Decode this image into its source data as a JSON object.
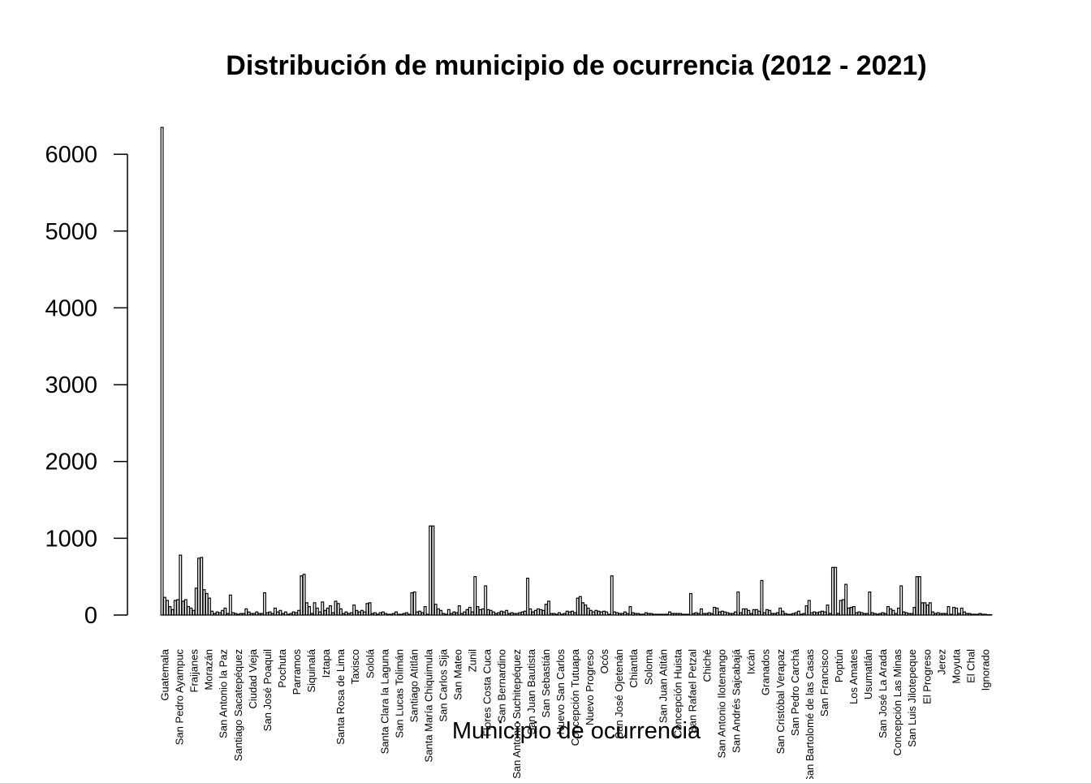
{
  "chart_data": {
    "type": "bar",
    "title": "Distribución de municipio de ocurrencia (2012 - 2021)",
    "xlabel": "Municipio de ocurrencia",
    "ylabel": "",
    "ylim": [
      0,
      6350
    ],
    "yticks": [
      0,
      1000,
      2000,
      3000,
      4000,
      5000,
      6000
    ],
    "grid": false,
    "legend": "none",
    "bar_fill": "#ffffff",
    "bar_stroke": "#000000",
    "tick_labels": [
      "Guatemala",
      "San Pedro Ayampuc",
      "Fraijanes",
      "Morazán",
      "San Antonio la Paz",
      "Santiago Sacatepéquez",
      "Ciudad Vieja",
      "San José Poaquil",
      "Pochuta",
      "Parramos",
      "Siquinalá",
      "Iztapa",
      "Santa Rosa de Lima",
      "Taxisco",
      "Sololá",
      "Santa Clara la Laguna",
      "San Lucas Tolimán",
      "Santiago Atitlán",
      "Santa María Chiquimula",
      "San Carlos Sija",
      "San Mateo",
      "Zunil",
      "Flores Costa Cuca",
      "San Bernardino",
      "San Antonio Suchitepéquez",
      "San Juan Bautista",
      "San Sebastián",
      "Nuevo San Carlos",
      "Concepción Tutuapa",
      "Nuevo Progreso",
      "Ocós",
      "San José Ojetenán",
      "Chiantla",
      "Soloma",
      "San Juan Atitán",
      "Concepción Huista",
      "San Rafael Petzal",
      "Chiché",
      "San Antonio Ilotenango",
      "San Andrés Sajcabajá",
      "Ixcán",
      "Granados",
      "San Cristóbal Verapaz",
      "San Pedro Carchá",
      "San Bartolomé de las Casas",
      "San Francisco",
      "Poptún",
      "Los Amates",
      "Usumatlán",
      "San José La Arada",
      "Concepción Las Minas",
      "San Luis Jilotepeque",
      "El Progreso",
      "Jerez",
      "Moyuta",
      "El Chal",
      "Ignorado"
    ],
    "values": [
      6350,
      230,
      190,
      110,
      70,
      190,
      200,
      780,
      180,
      200,
      110,
      90,
      60,
      350,
      740,
      750,
      330,
      280,
      220,
      50,
      20,
      40,
      30,
      60,
      90,
      20,
      260,
      30,
      20,
      10,
      20,
      20,
      80,
      40,
      20,
      20,
      40,
      20,
      20,
      290,
      30,
      40,
      20,
      90,
      40,
      60,
      20,
      40,
      10,
      20,
      40,
      30,
      60,
      510,
      530,
      160,
      110,
      20,
      160,
      90,
      40,
      170,
      60,
      90,
      120,
      30,
      180,
      150,
      80,
      20,
      40,
      20,
      30,
      130,
      60,
      40,
      60,
      40,
      150,
      160,
      20,
      30,
      10,
      30,
      40,
      20,
      10,
      10,
      20,
      40,
      10,
      10,
      20,
      30,
      10,
      290,
      300,
      40,
      50,
      30,
      110,
      10,
      1160,
      1160,
      140,
      80,
      60,
      20,
      10,
      70,
      20,
      40,
      30,
      120,
      20,
      40,
      70,
      100,
      40,
      500,
      110,
      70,
      80,
      380,
      70,
      60,
      40,
      20,
      30,
      50,
      40,
      60,
      20,
      30,
      20,
      20,
      30,
      40,
      50,
      480,
      80,
      40,
      60,
      80,
      70,
      60,
      140,
      180,
      20,
      20,
      10,
      30,
      10,
      20,
      50,
      40,
      50,
      30,
      220,
      240,
      160,
      130,
      90,
      60,
      40,
      60,
      50,
      40,
      50,
      40,
      10,
      510,
      40,
      30,
      20,
      20,
      40,
      20,
      110,
      30,
      20,
      20,
      10,
      10,
      30,
      20,
      20,
      10,
      10,
      10,
      10,
      10,
      10,
      40,
      20,
      20,
      20,
      20,
      10,
      10,
      10,
      280,
      20,
      30,
      20,
      80,
      20,
      20,
      30,
      20,
      100,
      90,
      40,
      50,
      40,
      30,
      20,
      20,
      40,
      300,
      30,
      80,
      80,
      60,
      20,
      70,
      70,
      50,
      450,
      30,
      70,
      60,
      20,
      20,
      30,
      90,
      50,
      20,
      10,
      10,
      20,
      30,
      50,
      10,
      20,
      120,
      190,
      30,
      40,
      30,
      40,
      50,
      40,
      130,
      20,
      620,
      620,
      20,
      190,
      200,
      400,
      90,
      100,
      110,
      30,
      40,
      30,
      20,
      20,
      300,
      30,
      20,
      10,
      20,
      30,
      20,
      110,
      80,
      60,
      20,
      90,
      380,
      40,
      30,
      20,
      20,
      100,
      500,
      500,
      160,
      160,
      130,
      160,
      40,
      20,
      30,
      20,
      20,
      20,
      110,
      10,
      100,
      90,
      20,
      90,
      40,
      20,
      20,
      10,
      10,
      10,
      20,
      10,
      10,
      5,
      5
    ]
  }
}
